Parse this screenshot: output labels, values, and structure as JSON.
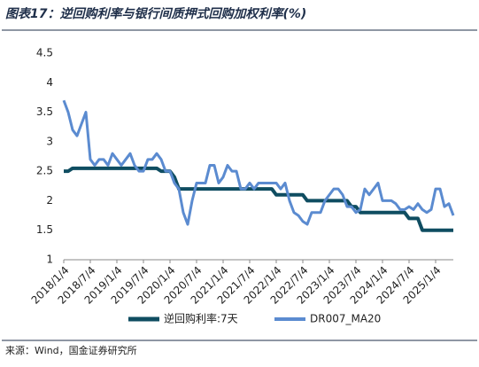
{
  "chart_data": {
    "type": "line",
    "title": "图表17：逆回购利率与银行间质押式回购加权利率(%)",
    "source": "来源：Wind，国金证券研究所",
    "categories": [
      "2018/1/4",
      null,
      null,
      null,
      null,
      null,
      "2018/7/4",
      null,
      null,
      null,
      null,
      null,
      "2019/1/4",
      null,
      null,
      null,
      null,
      null,
      "2019/7/4",
      null,
      null,
      null,
      null,
      null,
      "2020/1/4",
      null,
      null,
      null,
      null,
      null,
      "2020/7/4",
      null,
      null,
      null,
      null,
      null,
      "2021/1/4",
      null,
      null,
      null,
      null,
      null,
      "2021/7/4",
      null,
      null,
      null,
      null,
      null,
      "2022/1/4",
      null,
      null,
      null,
      null,
      null,
      "2022/7/4",
      null,
      null,
      null,
      null,
      null,
      "2023/1/4",
      null,
      null,
      null,
      null,
      null,
      "2023/7/4",
      null,
      null,
      null,
      null,
      null,
      "2024/1/4",
      null,
      null,
      null,
      null,
      null,
      "2024/7/4",
      null,
      null,
      null,
      null,
      null,
      "2025/1/4",
      null,
      null,
      null,
      null
    ],
    "series": [
      {
        "name": "逆回购利率:7天",
        "color": "#0f4d61",
        "width": 4,
        "values": [
          2.5,
          2.5,
          2.55,
          2.55,
          2.55,
          2.55,
          2.55,
          2.55,
          2.55,
          2.55,
          2.55,
          2.55,
          2.55,
          2.55,
          2.55,
          2.55,
          2.55,
          2.55,
          2.55,
          2.55,
          2.55,
          2.55,
          2.5,
          2.5,
          2.5,
          2.4,
          2.2,
          2.2,
          2.2,
          2.2,
          2.2,
          2.2,
          2.2,
          2.2,
          2.2,
          2.2,
          2.2,
          2.2,
          2.2,
          2.2,
          2.2,
          2.2,
          2.2,
          2.2,
          2.2,
          2.2,
          2.2,
          2.2,
          2.1,
          2.1,
          2.1,
          2.1,
          2.1,
          2.1,
          2.1,
          2.0,
          2.0,
          2.0,
          2.0,
          2.0,
          2.0,
          2.0,
          2.0,
          2.0,
          2.0,
          1.9,
          1.9,
          1.8,
          1.8,
          1.8,
          1.8,
          1.8,
          1.8,
          1.8,
          1.8,
          1.8,
          1.8,
          1.8,
          1.7,
          1.7,
          1.7,
          1.5,
          1.5,
          1.5,
          1.5,
          1.5,
          1.5,
          1.5,
          1.5
        ]
      },
      {
        "name": "DR007_MA20",
        "color": "#5b8bd0",
        "width": 3,
        "values": [
          3.7,
          3.5,
          3.2,
          3.1,
          3.3,
          3.5,
          2.7,
          2.6,
          2.7,
          2.7,
          2.6,
          2.8,
          2.7,
          2.6,
          2.7,
          2.8,
          2.6,
          2.5,
          2.5,
          2.7,
          2.7,
          2.8,
          2.7,
          2.5,
          2.5,
          2.3,
          2.2,
          1.8,
          1.6,
          2.0,
          2.3,
          2.3,
          2.3,
          2.6,
          2.6,
          2.3,
          2.4,
          2.6,
          2.5,
          2.5,
          2.2,
          2.2,
          2.3,
          2.2,
          2.3,
          2.3,
          2.3,
          2.3,
          2.3,
          2.2,
          2.3,
          2.0,
          1.8,
          1.75,
          1.65,
          1.6,
          1.8,
          1.8,
          1.8,
          2.0,
          2.1,
          2.2,
          2.2,
          2.1,
          1.9,
          1.9,
          1.8,
          1.85,
          2.2,
          2.1,
          2.2,
          2.3,
          2.0,
          2.0,
          2.0,
          1.95,
          1.85,
          1.85,
          1.9,
          1.85,
          1.95,
          1.85,
          1.8,
          1.85,
          2.2,
          2.2,
          1.9,
          1.95,
          1.75
        ]
      }
    ],
    "ylim": [
      1,
      4.5
    ],
    "yticks": [
      1,
      1.5,
      2,
      2.5,
      3,
      3.5,
      4,
      4.5
    ],
    "grid": false
  }
}
